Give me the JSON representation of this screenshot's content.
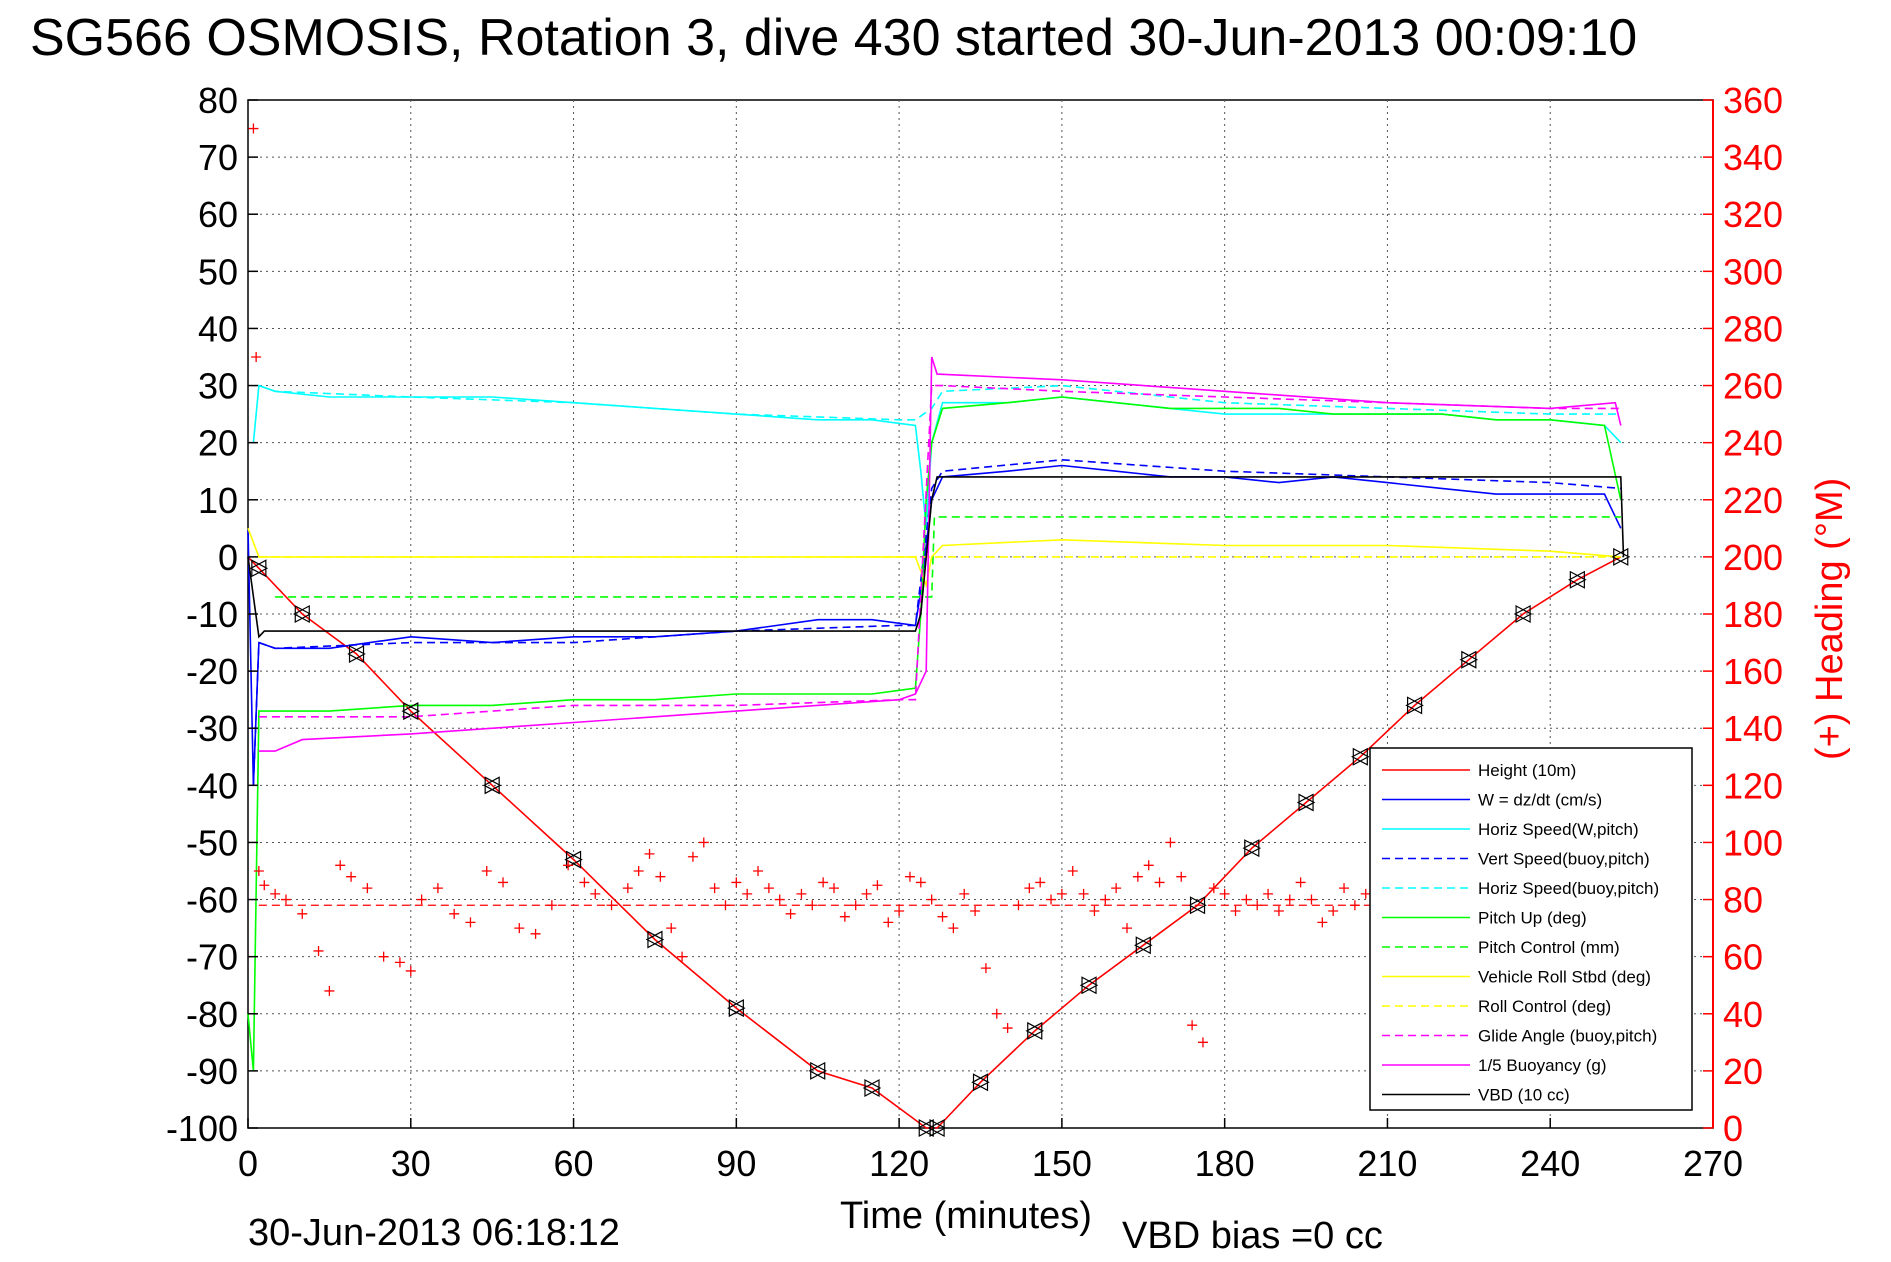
{
  "title": "SG566 OSMOSIS, Rotation 3, dive 430 started 30-Jun-2013 00:09:10",
  "timestamp": "30-Jun-2013 06:18:12",
  "xlabel": "Time (minutes)",
  "footer_note": "VBD bias =0 cc",
  "ylabel_right": "(+) Heading (°M)",
  "colors": {
    "height": "#ff0000",
    "w": "#0000ff",
    "horiz_speed": "#00ffff",
    "vert_speed": "#0000ff",
    "horiz_speed_buoy": "#00ffff",
    "pitch_up": "#00ff00",
    "pitch_control": "#00ff00",
    "vehicle_roll": "#ffff00",
    "roll_control": "#ffff00",
    "glide_angle": "#ff00ff",
    "buoyancy": "#ff00ff",
    "vbd": "#000000",
    "heading": "#ff0000"
  },
  "chart_data": {
    "type": "line",
    "xlim": [
      0,
      270
    ],
    "ylim": [
      -100,
      80
    ],
    "ylim_right": [
      0,
      360
    ],
    "grid": true,
    "legend_position": "bottom-right",
    "x_ticks": [
      "0",
      "30",
      "60",
      "90",
      "120",
      "150",
      "180",
      "210",
      "240",
      "270"
    ],
    "y_ticks": [
      "80",
      "70",
      "60",
      "50",
      "40",
      "30",
      "20",
      "10",
      "0",
      "-10",
      "-20",
      "-30",
      "-40",
      "-50",
      "-60",
      "-70",
      "-80",
      "-90",
      "-100"
    ],
    "y_ticks_right": [
      "360",
      "340",
      "320",
      "300",
      "280",
      "260",
      "240",
      "220",
      "200",
      "180",
      "160",
      "140",
      "120",
      "100",
      "80",
      "60",
      "40",
      "20",
      "0"
    ],
    "heading_mean_line": 78,
    "series": [
      {
        "name": "Height (10m)",
        "style": "solid",
        "color_key": "height",
        "x": [
          0,
          2,
          10,
          20,
          30,
          45,
          60,
          75,
          90,
          105,
          115,
          125,
          127,
          135,
          145,
          155,
          165,
          175,
          185,
          195,
          205,
          215,
          225,
          235,
          245,
          253
        ],
        "y": [
          0,
          -2,
          -10,
          -17,
          -27,
          -40,
          -53,
          -67,
          -79,
          -90,
          -93,
          -100,
          -100,
          -92,
          -83,
          -75,
          -68,
          -61,
          -51,
          -43,
          -35,
          -26,
          -18,
          -10,
          -4,
          0
        ]
      },
      {
        "name": "W = dz/dt (cm/s)",
        "style": "solid",
        "color_key": "w",
        "x": [
          0,
          1,
          2,
          5,
          15,
          30,
          45,
          60,
          75,
          90,
          105,
          115,
          123,
          124,
          125,
          126,
          128,
          140,
          150,
          160,
          170,
          180,
          190,
          200,
          210,
          220,
          230,
          240,
          250,
          253
        ],
        "y": [
          5,
          -40,
          -15,
          -16,
          -16,
          -14,
          -15,
          -14,
          -14,
          -13,
          -11,
          -11,
          -12,
          -6,
          2,
          10,
          14,
          15,
          16,
          15,
          14,
          14,
          13,
          14,
          13,
          12,
          11,
          11,
          11,
          5
        ]
      },
      {
        "name": "Horiz Speed(W,pitch)",
        "style": "solid",
        "color_key": "horiz_speed",
        "x": [
          1,
          2,
          5,
          15,
          30,
          45,
          60,
          75,
          90,
          105,
          115,
          123,
          124,
          125,
          126,
          128,
          140,
          150,
          160,
          170,
          180,
          190,
          200,
          210,
          220,
          230,
          240,
          250,
          253
        ],
        "y": [
          20,
          30,
          29,
          28,
          28,
          28,
          27,
          26,
          25,
          24,
          24,
          23,
          15,
          5,
          20,
          27,
          27,
          28,
          27,
          26,
          25,
          25,
          25,
          25,
          25,
          24,
          24,
          23,
          20
        ]
      },
      {
        "name": "Vert Speed(buoy,pitch)",
        "style": "dashed",
        "color_key": "vert_speed",
        "x": [
          1,
          2,
          5,
          30,
          60,
          90,
          120,
          123,
          126,
          128,
          150,
          180,
          210,
          240,
          253
        ],
        "y": [
          -40,
          -15,
          -16,
          -15,
          -15,
          -13,
          -12,
          -12,
          12,
          15,
          17,
          15,
          14,
          13,
          12
        ]
      },
      {
        "name": "Horiz Speed(buoy,pitch)",
        "style": "dashed",
        "color_key": "horiz_speed_buoy",
        "x": [
          2,
          5,
          30,
          60,
          90,
          120,
          123,
          126,
          128,
          150,
          180,
          210,
          240,
          253
        ],
        "y": [
          30,
          29,
          28,
          27,
          25,
          24,
          24,
          26,
          29,
          30,
          27,
          26,
          25,
          25
        ]
      },
      {
        "name": "Pitch Up (deg)",
        "style": "solid",
        "color_key": "pitch_up",
        "x": [
          0,
          1,
          2,
          5,
          15,
          30,
          45,
          60,
          75,
          90,
          105,
          115,
          123,
          124,
          125,
          126,
          128,
          140,
          150,
          160,
          170,
          180,
          190,
          200,
          210,
          220,
          230,
          240,
          250,
          253
        ],
        "y": [
          -80,
          -90,
          -27,
          -27,
          -27,
          -26,
          -26,
          -25,
          -25,
          -24,
          -24,
          -24,
          -23,
          -10,
          10,
          20,
          26,
          27,
          28,
          27,
          26,
          26,
          26,
          25,
          25,
          25,
          24,
          24,
          23,
          10
        ]
      },
      {
        "name": "Pitch Control (mm)",
        "style": "dashed",
        "color_key": "pitch_control",
        "x": [
          5,
          123,
          123.5,
          126,
          126.5,
          253
        ],
        "y": [
          -7,
          -7,
          -7,
          -7,
          7,
          7
        ]
      },
      {
        "name": "Vehicle Roll Stbd (deg)",
        "style": "solid",
        "color_key": "vehicle_roll",
        "x": [
          0,
          2,
          5,
          60,
          90,
          123,
          125,
          126,
          128,
          150,
          180,
          210,
          240,
          253
        ],
        "y": [
          5,
          0,
          0,
          0,
          0,
          0,
          -5,
          0,
          2,
          3,
          2,
          2,
          1,
          0
        ]
      },
      {
        "name": "Roll Control (deg)",
        "style": "dashed",
        "color_key": "roll_control",
        "x": [
          2,
          123,
          126,
          253
        ],
        "y": [
          0,
          0,
          0,
          0
        ]
      },
      {
        "name": "Glide Angle (buoy,pitch)",
        "style": "dashed",
        "color_key": "glide_angle",
        "x": [
          2,
          5,
          30,
          60,
          90,
          120,
          123,
          126,
          128,
          150,
          180,
          210,
          240,
          253
        ],
        "y": [
          -28,
          -28,
          -28,
          -26,
          -26,
          -25,
          -25,
          30,
          30,
          29,
          28,
          27,
          26,
          26
        ]
      },
      {
        "name": "1/5 Buoyancy (g)",
        "style": "solid",
        "color_key": "buoyancy",
        "x": [
          2,
          5,
          10,
          30,
          60,
          90,
          120,
          123,
          125,
          126,
          127,
          150,
          180,
          210,
          240,
          252,
          253
        ],
        "y": [
          -34,
          -34,
          -32,
          -31,
          -29,
          -27,
          -25,
          -24,
          -20,
          35,
          32,
          31,
          29,
          27,
          26,
          27,
          23
        ]
      },
      {
        "name": "VBD (10 cc)",
        "style": "solid",
        "color_key": "vbd",
        "x": [
          0,
          2,
          3,
          20,
          123,
          124,
          126,
          127,
          253,
          253.5
        ],
        "y": [
          0,
          -14,
          -13,
          -13,
          -13,
          -10,
          10,
          14,
          14,
          0
        ]
      }
    ],
    "heading": {
      "name": "(+) Heading",
      "x": [
        1,
        1.5,
        2,
        3,
        5,
        7,
        10,
        13,
        15,
        17,
        19,
        22,
        25,
        28,
        30,
        32,
        35,
        38,
        41,
        44,
        47,
        50,
        53,
        56,
        59,
        62,
        64,
        67,
        70,
        72,
        74,
        76,
        78,
        80,
        82,
        84,
        86,
        88,
        90,
        92,
        94,
        96,
        98,
        100,
        102,
        104,
        106,
        108,
        110,
        112,
        114,
        116,
        118,
        120,
        122,
        124,
        126,
        128,
        130,
        132,
        134,
        136,
        138,
        140,
        142,
        144,
        146,
        148,
        150,
        152,
        154,
        156,
        158,
        160,
        162,
        164,
        166,
        168,
        170,
        172,
        174,
        176,
        178,
        180,
        182,
        184,
        186,
        188,
        190,
        192,
        194,
        196,
        198,
        200,
        202,
        204,
        206,
        208,
        210
      ],
      "y": [
        350,
        270,
        90,
        85,
        82,
        80,
        75,
        62,
        48,
        92,
        88,
        84,
        60,
        58,
        55,
        80,
        84,
        75,
        72,
        90,
        86,
        70,
        68,
        78,
        92,
        86,
        82,
        78,
        84,
        90,
        96,
        88,
        70,
        60,
        95,
        100,
        84,
        78,
        86,
        82,
        90,
        84,
        80,
        75,
        82,
        78,
        86,
        84,
        74,
        78,
        82,
        85,
        72,
        76,
        88,
        86,
        80,
        74,
        70,
        82,
        76,
        56,
        40,
        35,
        78,
        84,
        86,
        80,
        82,
        90,
        82,
        76,
        80,
        84,
        70,
        88,
        92,
        86,
        100,
        88,
        36,
        30,
        84,
        82,
        76,
        80,
        78,
        82,
        76,
        80,
        86,
        80,
        72,
        76,
        84,
        78,
        82,
        76,
        70
      ]
    },
    "markers_note": "triangle markers along the Height series"
  },
  "legend": [
    "Height (10m)",
    "W = dz/dt (cm/s)",
    "Horiz Speed(W,pitch)",
    "Vert Speed(buoy,pitch)",
    "Horiz Speed(buoy,pitch)",
    "Pitch Up (deg)",
    "Pitch Control (mm)",
    "Vehicle Roll Stbd (deg)",
    "Roll Control (deg)",
    "Glide Angle (buoy,pitch)",
    "1/5 Buoyancy (g)",
    "VBD (10 cc)"
  ]
}
